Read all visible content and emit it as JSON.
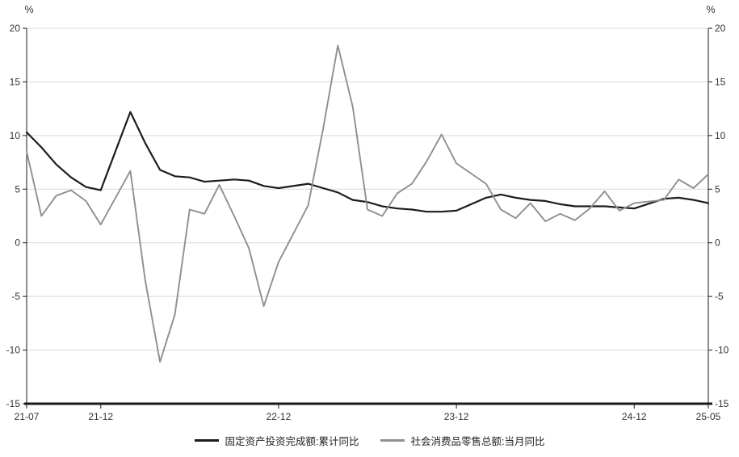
{
  "chart_data": {
    "type": "line",
    "x": [
      "21-07",
      "21-08",
      "21-09",
      "21-10",
      "21-11",
      "21-12",
      "22-02",
      "22-03",
      "22-04",
      "22-05",
      "22-06",
      "22-07",
      "22-08",
      "22-09",
      "22-10",
      "22-11",
      "22-12",
      "23-02",
      "23-03",
      "23-04",
      "23-05",
      "23-06",
      "23-07",
      "23-08",
      "23-09",
      "23-10",
      "23-11",
      "23-12",
      "24-02",
      "24-03",
      "24-04",
      "24-05",
      "24-06",
      "24-07",
      "24-08",
      "24-09",
      "24-10",
      "24-11",
      "24-12",
      "25-02",
      "25-03",
      "25-04",
      "25-05"
    ],
    "series": [
      {
        "name": "固定资产投资完成额:累计同比",
        "color": "#1c1c1c",
        "line_width": 2.2,
        "values": [
          10.3,
          8.9,
          7.3,
          6.1,
          5.2,
          4.9,
          12.2,
          9.3,
          6.8,
          6.2,
          6.1,
          5.7,
          5.8,
          5.9,
          5.8,
          5.3,
          5.1,
          5.5,
          5.1,
          4.7,
          4.0,
          3.8,
          3.4,
          3.2,
          3.1,
          2.9,
          2.9,
          3.0,
          4.2,
          4.5,
          4.2,
          4.0,
          3.9,
          3.6,
          3.4,
          3.4,
          3.4,
          3.3,
          3.2,
          4.1,
          4.2,
          4.0,
          3.7
        ]
      },
      {
        "name": "社会消费品零售总额:当月同比",
        "color": "#8f8f8f",
        "line_width": 1.9,
        "values": [
          8.5,
          2.5,
          4.4,
          4.9,
          3.9,
          1.7,
          6.7,
          -3.5,
          -11.1,
          -6.7,
          3.1,
          2.7,
          5.4,
          2.5,
          -0.5,
          -5.9,
          -1.8,
          3.5,
          10.6,
          18.4,
          12.7,
          3.1,
          2.5,
          4.6,
          5.5,
          7.6,
          10.1,
          7.4,
          5.5,
          3.1,
          2.3,
          3.7,
          2.0,
          2.7,
          2.1,
          3.2,
          4.8,
          3.0,
          3.7,
          4.0,
          5.9,
          5.1,
          6.4
        ]
      }
    ],
    "ylim": [
      -15,
      20
    ],
    "yticks": [
      -15,
      -10,
      -5,
      0,
      5,
      10,
      15,
      20
    ],
    "xticks": [
      "21-07",
      "21-12",
      "22-12",
      "23-12",
      "24-12",
      "25-05"
    ],
    "y_unit_left": "%",
    "y_unit_right": "%",
    "grid": true,
    "legend_position": "bottom",
    "colors": {
      "grid": "#d9d9d9",
      "axis": "#1a1a1a",
      "tick_text": "#333333"
    }
  }
}
